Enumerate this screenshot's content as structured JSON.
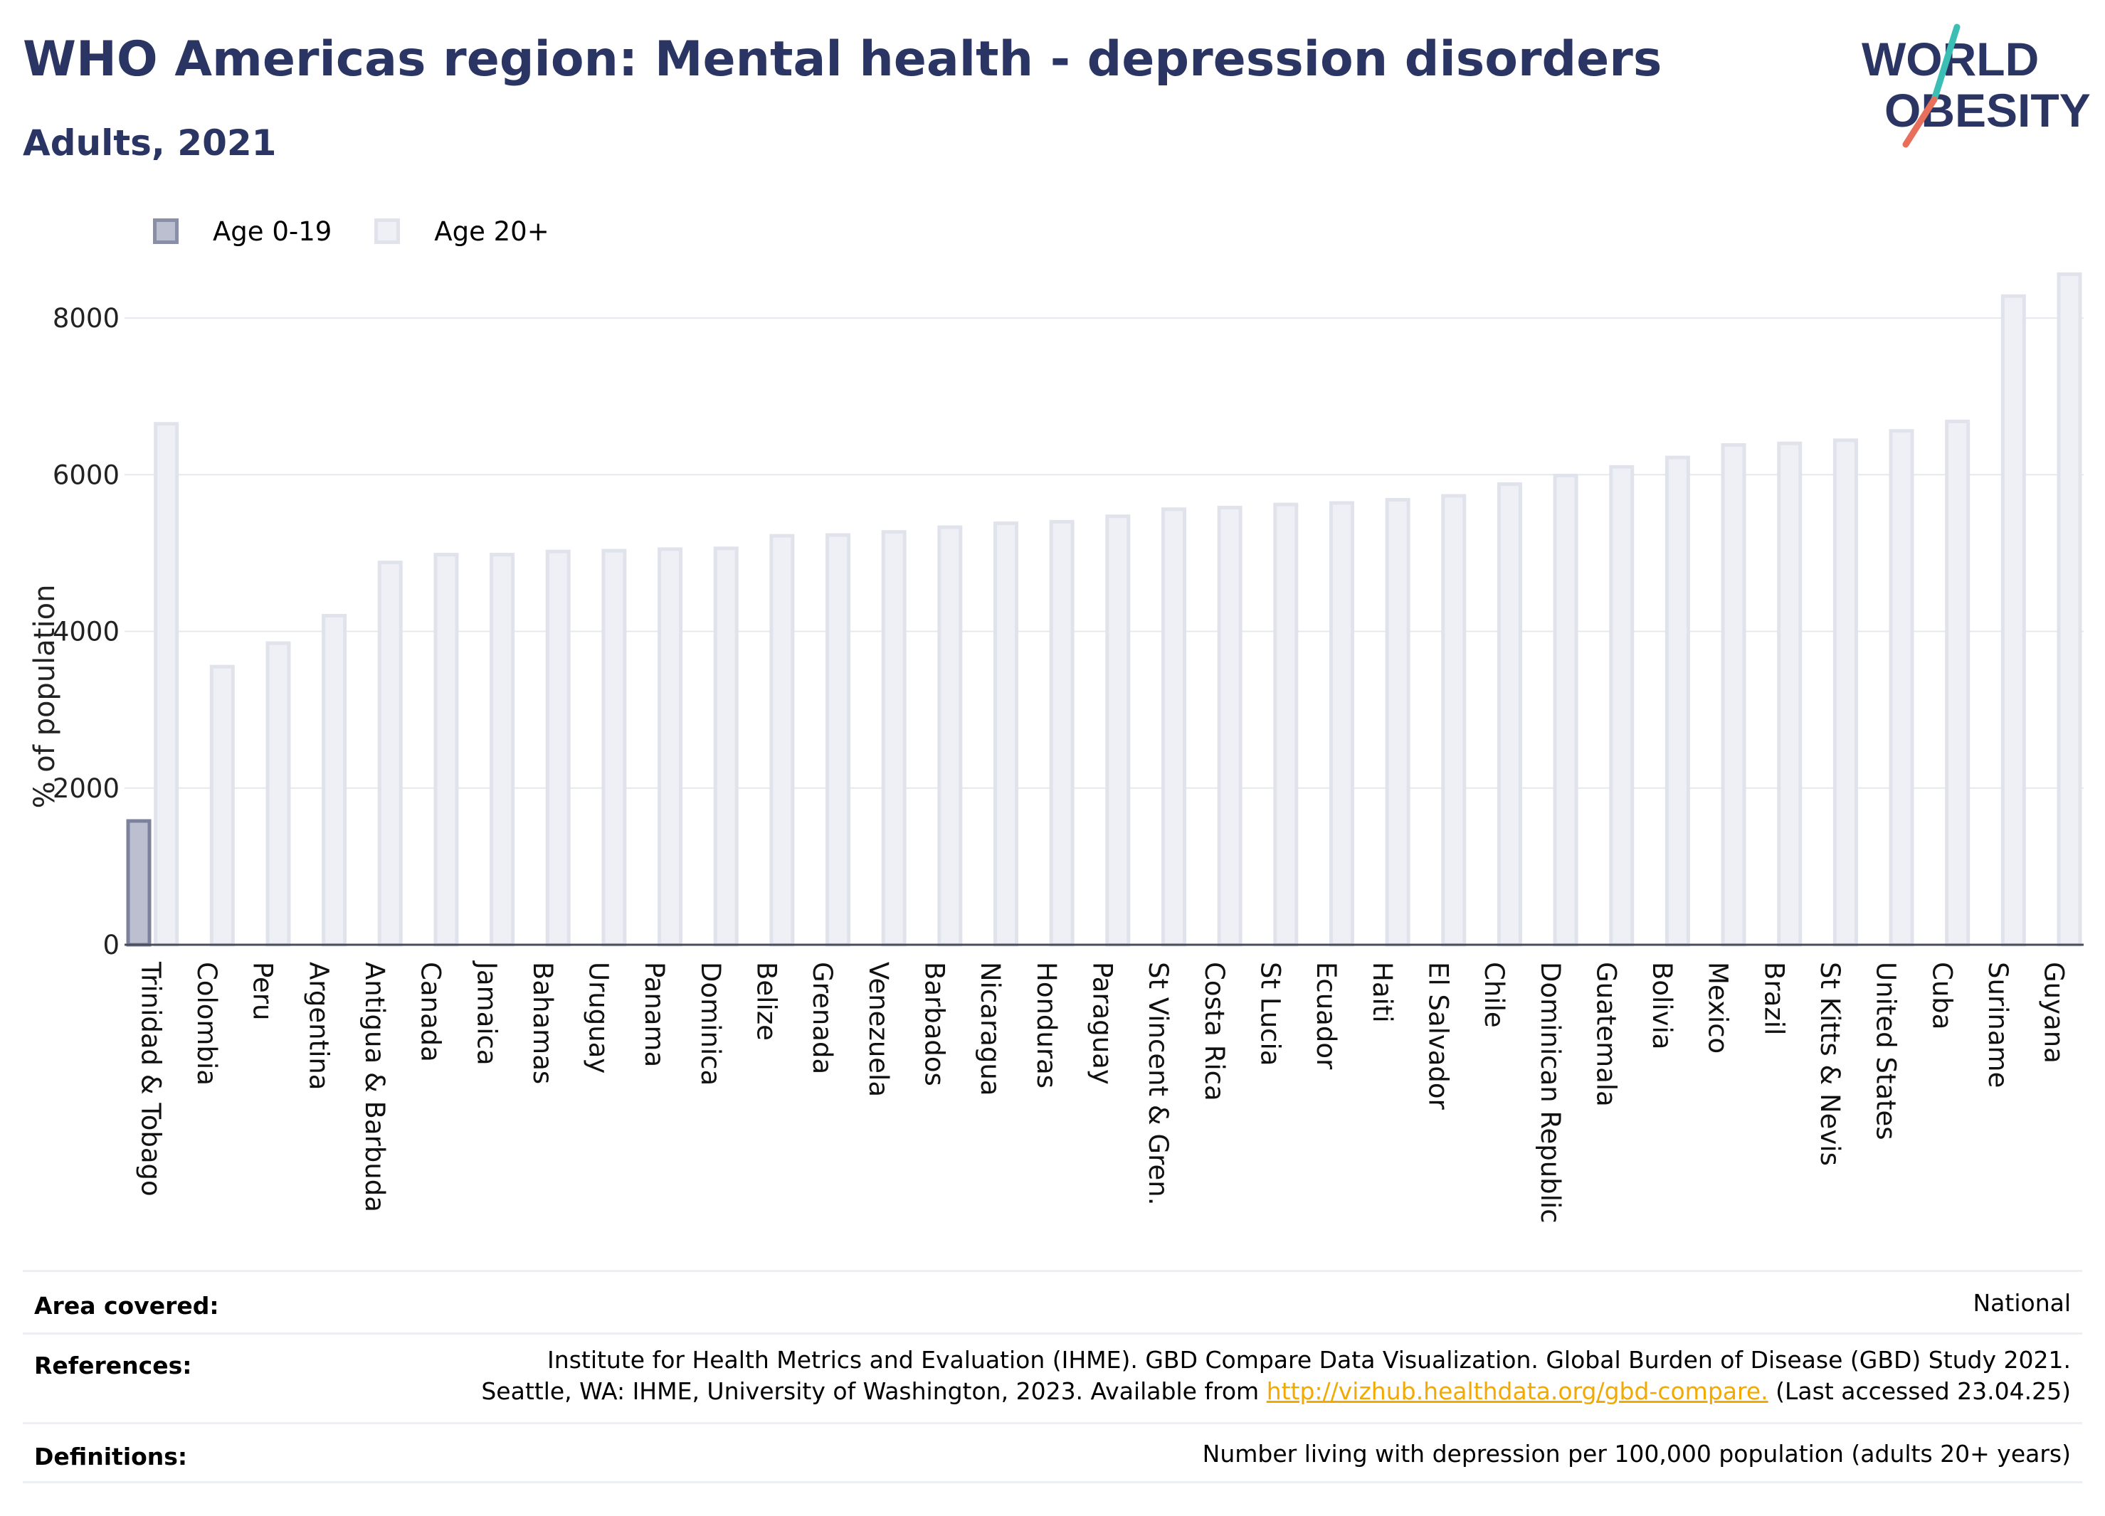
{
  "header": {
    "title": "WHO Americas region: Mental health - depression disorders",
    "subtitle": "Adults, 2021"
  },
  "logo": {
    "line1": "WORLD",
    "line2": "OBESITY",
    "accent_teal": "#3bbfb4",
    "accent_coral": "#e8705a",
    "color": "#2b3563"
  },
  "legend": [
    {
      "label": "Age 0-19",
      "color": "#bcbfd0"
    },
    {
      "label": "Age 20+",
      "color": "#eef0f5"
    }
  ],
  "chart_data": {
    "type": "bar",
    "ylabel": "% of population",
    "ylim": [
      0,
      8700
    ],
    "yticks": [
      0,
      2000,
      4000,
      6000,
      8000
    ],
    "grid": true,
    "legend_placement": "top-left",
    "categories": [
      "Trinidad & Tobago",
      "Colombia",
      "Peru",
      "Argentina",
      "Antigua & Barbuda",
      "Canada",
      "Jamaica",
      "Bahamas",
      "Uruguay",
      "Panama",
      "Dominica",
      "Belize",
      "Grenada",
      "Venezuela",
      "Barbados",
      "Nicaragua",
      "Honduras",
      "Paraguay",
      "St Vincent & Gren.",
      "Costa Rica",
      "St Lucia",
      "Ecuador",
      "Haiti",
      "El Salvador",
      "Chile",
      "Dominican Republic",
      "Guatemala",
      "Bolivia",
      "Mexico",
      "Brazil",
      "St Kitts & Nevis",
      "United States",
      "Cuba",
      "Suriname",
      "Guyana"
    ],
    "series": [
      {
        "name": "Age 0-19",
        "color": "#bcbfd0",
        "values": [
          1580,
          null,
          null,
          null,
          null,
          null,
          null,
          null,
          null,
          null,
          null,
          null,
          null,
          null,
          null,
          null,
          null,
          null,
          null,
          null,
          null,
          null,
          null,
          null,
          null,
          null,
          null,
          null,
          null,
          null,
          null,
          null,
          null,
          null,
          null
        ]
      },
      {
        "name": "Age 20+",
        "color": "#eef0f5",
        "values": [
          6650,
          3550,
          3850,
          4200,
          4880,
          4980,
          4980,
          5020,
          5030,
          5050,
          5060,
          5220,
          5230,
          5270,
          5330,
          5380,
          5400,
          5470,
          5560,
          5580,
          5620,
          5640,
          5680,
          5730,
          5880,
          5990,
          6100,
          6220,
          6380,
          6400,
          6440,
          6560,
          6680,
          8280,
          8560
        ]
      }
    ]
  },
  "info": {
    "area_label": "Area covered:",
    "area_value": "National",
    "ref_label": "References:",
    "ref_line1": "Institute for Health Metrics and Evaluation (IHME). GBD Compare Data Visualization. Global Burden of Disease (GBD) Study 2021.",
    "ref_line2_pre": "Seattle, WA: IHME, University of Washington, 2023. Available from ",
    "ref_link": "http://vizhub.healthdata.org/gbd-compare.",
    "ref_line2_post": " (Last accessed 23.04.25)",
    "def_label": "Definitions:",
    "def_value": "Number living with depression per 100,000 population (adults 20+ years)"
  }
}
